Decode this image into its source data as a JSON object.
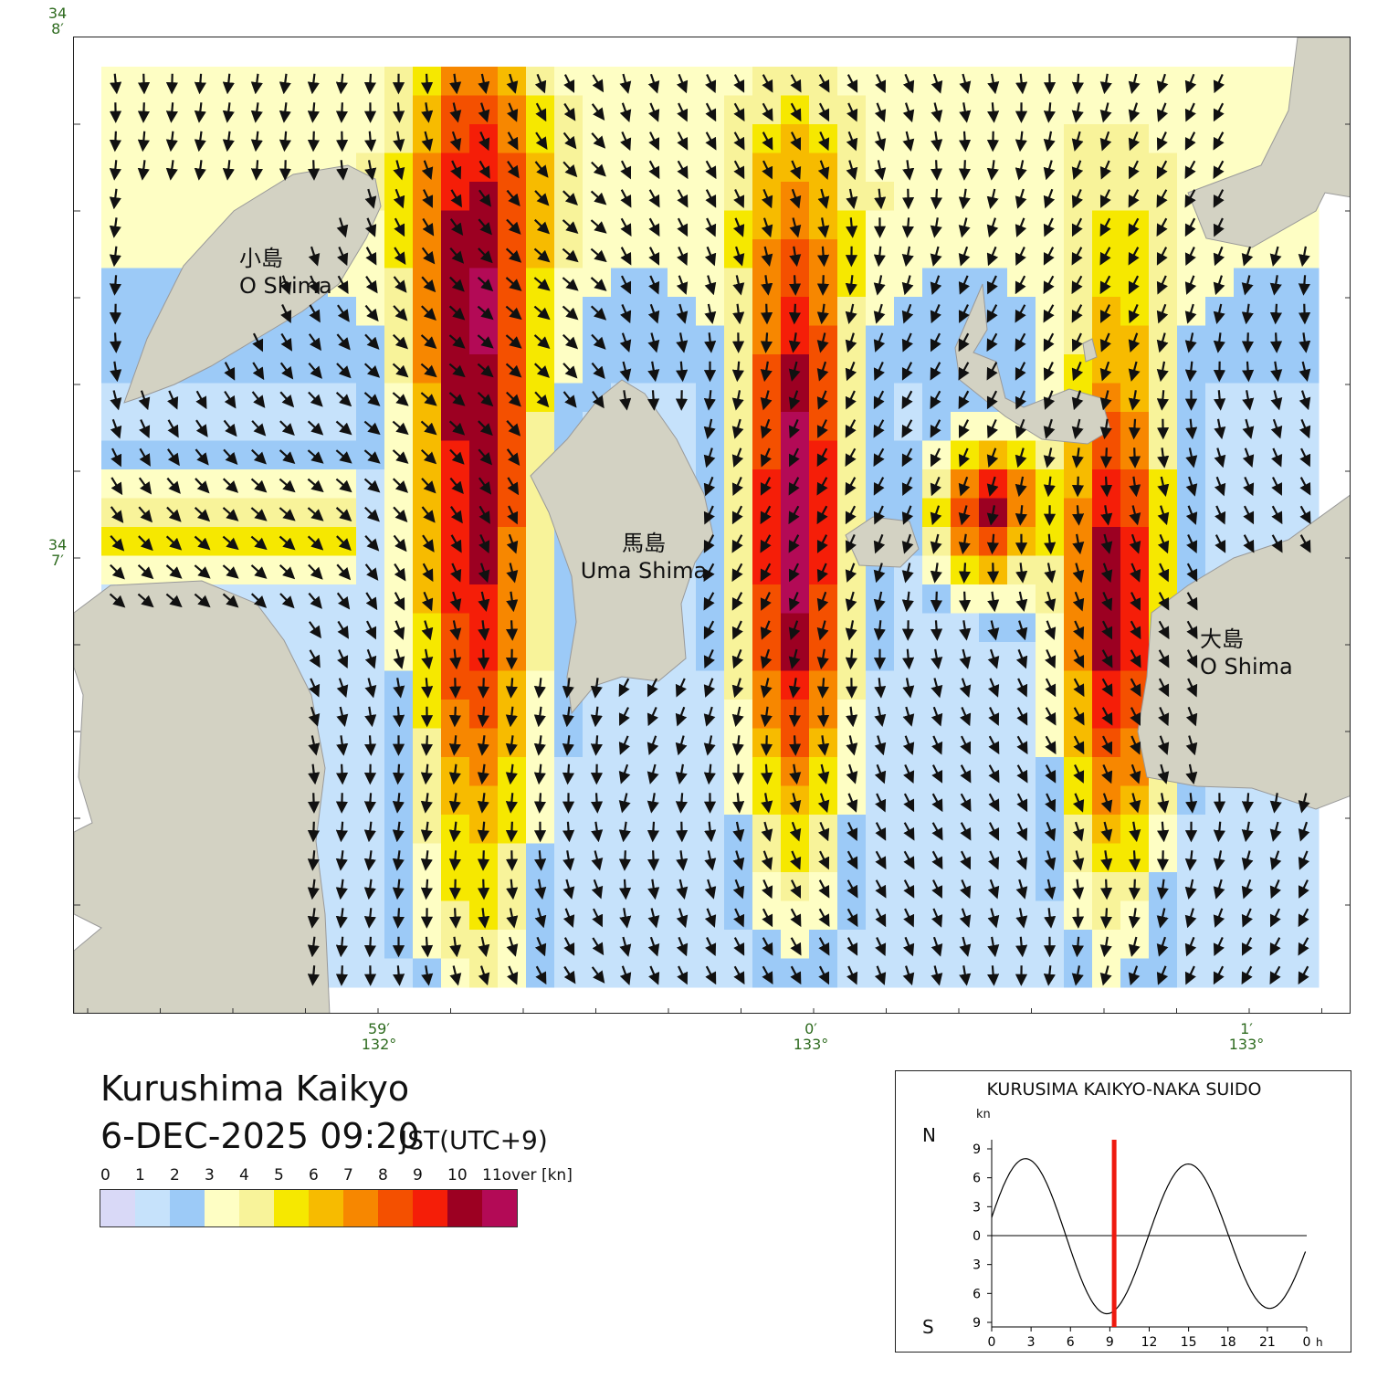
{
  "map": {
    "lat_labels": [
      {
        "deg": "34",
        "min": "8′"
      },
      {
        "deg": "34",
        "min": "7′"
      }
    ],
    "lon_labels": [
      {
        "min": "59′",
        "deg": "132°"
      },
      {
        "min": "0′",
        "deg": "133°"
      },
      {
        "min": "1′",
        "deg": "133°"
      }
    ],
    "places": [
      {
        "jp": "小島",
        "en": "O Shima"
      },
      {
        "jp": "馬島",
        "en": "Uma Shima"
      },
      {
        "jp": "大島",
        "en": "O Shima"
      }
    ]
  },
  "title": {
    "area": "Kurushima Kaikyo",
    "datetime": "6-DEC-2025 09:20",
    "timezone": "JST(UTC+9)"
  },
  "legend": {
    "ticks": [
      "0",
      "1",
      "2",
      "3",
      "4",
      "5",
      "6",
      "7",
      "8",
      "9",
      "10",
      "11over [kn]"
    ],
    "colors": [
      "#d9d9f7",
      "#c6e2fb",
      "#9ccaf7",
      "#fefec4",
      "#f8f39a",
      "#f6e800",
      "#f7bb00",
      "#f78700",
      "#f45000",
      "#f51e08",
      "#9c0022",
      "#b30a56"
    ]
  },
  "tide": {
    "title": "KURUSIMA KAIKYO-NAKA SUIDO",
    "unit": "kn",
    "north_label": "N",
    "south_label": "S",
    "y_ticks": [
      "9",
      "6",
      "3",
      "0",
      "3",
      "6",
      "9"
    ],
    "x_ticks": [
      "0",
      "3",
      "6",
      "9",
      "12",
      "15",
      "18",
      "21",
      "0"
    ],
    "x_unit": "h",
    "current_hour": 9.33,
    "curve_color": "#000000",
    "marker_color": "#ee1a0f"
  }
}
